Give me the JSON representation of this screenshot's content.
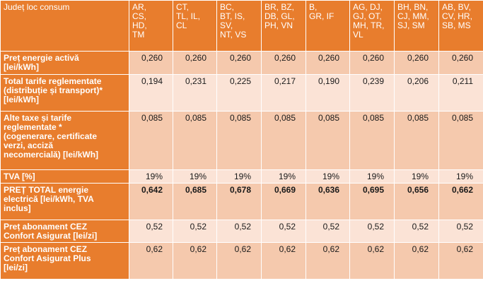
{
  "table": {
    "header_label": "Județ loc consum",
    "regions": [
      "AR,\nCS,\nHD,\nTM",
      "CT,\nTL, IL,\nCL",
      "BC,\nBT, IS,\nSV,\nNT, VS",
      "BR, BZ,\nDB, GL,\nPH, VN",
      "B,\nGR, IF",
      "AG, DJ,\nGJ, OT,\nMH, TR,\nVL",
      "BH, BN,\nCJ, MM,\nSJ, SM",
      "AB, BV,\nCV, HR,\nSB, MS"
    ],
    "rows": [
      {
        "label": "Preț energie activă\n[lei/kWh]",
        "values": [
          "0,260",
          "0,260",
          "0,260",
          "0,260",
          "0,260",
          "0,260",
          "0,260",
          "0,260"
        ]
      },
      {
        "label": "Total tarife reglementate\n(distribuție și transport)*\n[lei/kWh]",
        "values": [
          "0,194",
          "0,231",
          "0,225",
          "0,217",
          "0,190",
          "0,239",
          "0,206",
          "0,211"
        ]
      },
      {
        "label": "Alte taxe și tarife\nreglementate *\n(cogenerare, certificate\nverzi, acciză\nnecomercială) [lei/kWh]",
        "values": [
          "0,085",
          "0,085",
          "0,085",
          "0,085",
          "0,085",
          "0,085",
          "0,085",
          "0,085"
        ]
      },
      {
        "label": "TVA [%]",
        "values": [
          "19%",
          "19%",
          "19%",
          "19%",
          "19%",
          "19%",
          "19%",
          "19%"
        ]
      },
      {
        "label": "PREȚ TOTAL energie\nelectrică [lei/kWh, TVA\ninclus]",
        "values": [
          "0,642",
          "0,685",
          "0,678",
          "0,669",
          "0,636",
          "0,695",
          "0,656",
          "0,662"
        ]
      },
      {
        "label": "Preț abonament CEZ\nConfort Asigurat [lei/zi]",
        "values": [
          "0,52",
          "0,52",
          "0,52",
          "0,52",
          "0,52",
          "0,52",
          "0,52",
          "0,52"
        ]
      },
      {
        "label": "Preț abonament CEZ\nConfort Asigurat Plus\n[lei/zi]",
        "values": [
          "0,62",
          "0,62",
          "0,62",
          "0,62",
          "0,62",
          "0,62",
          "0,62",
          "0,62"
        ]
      }
    ]
  }
}
